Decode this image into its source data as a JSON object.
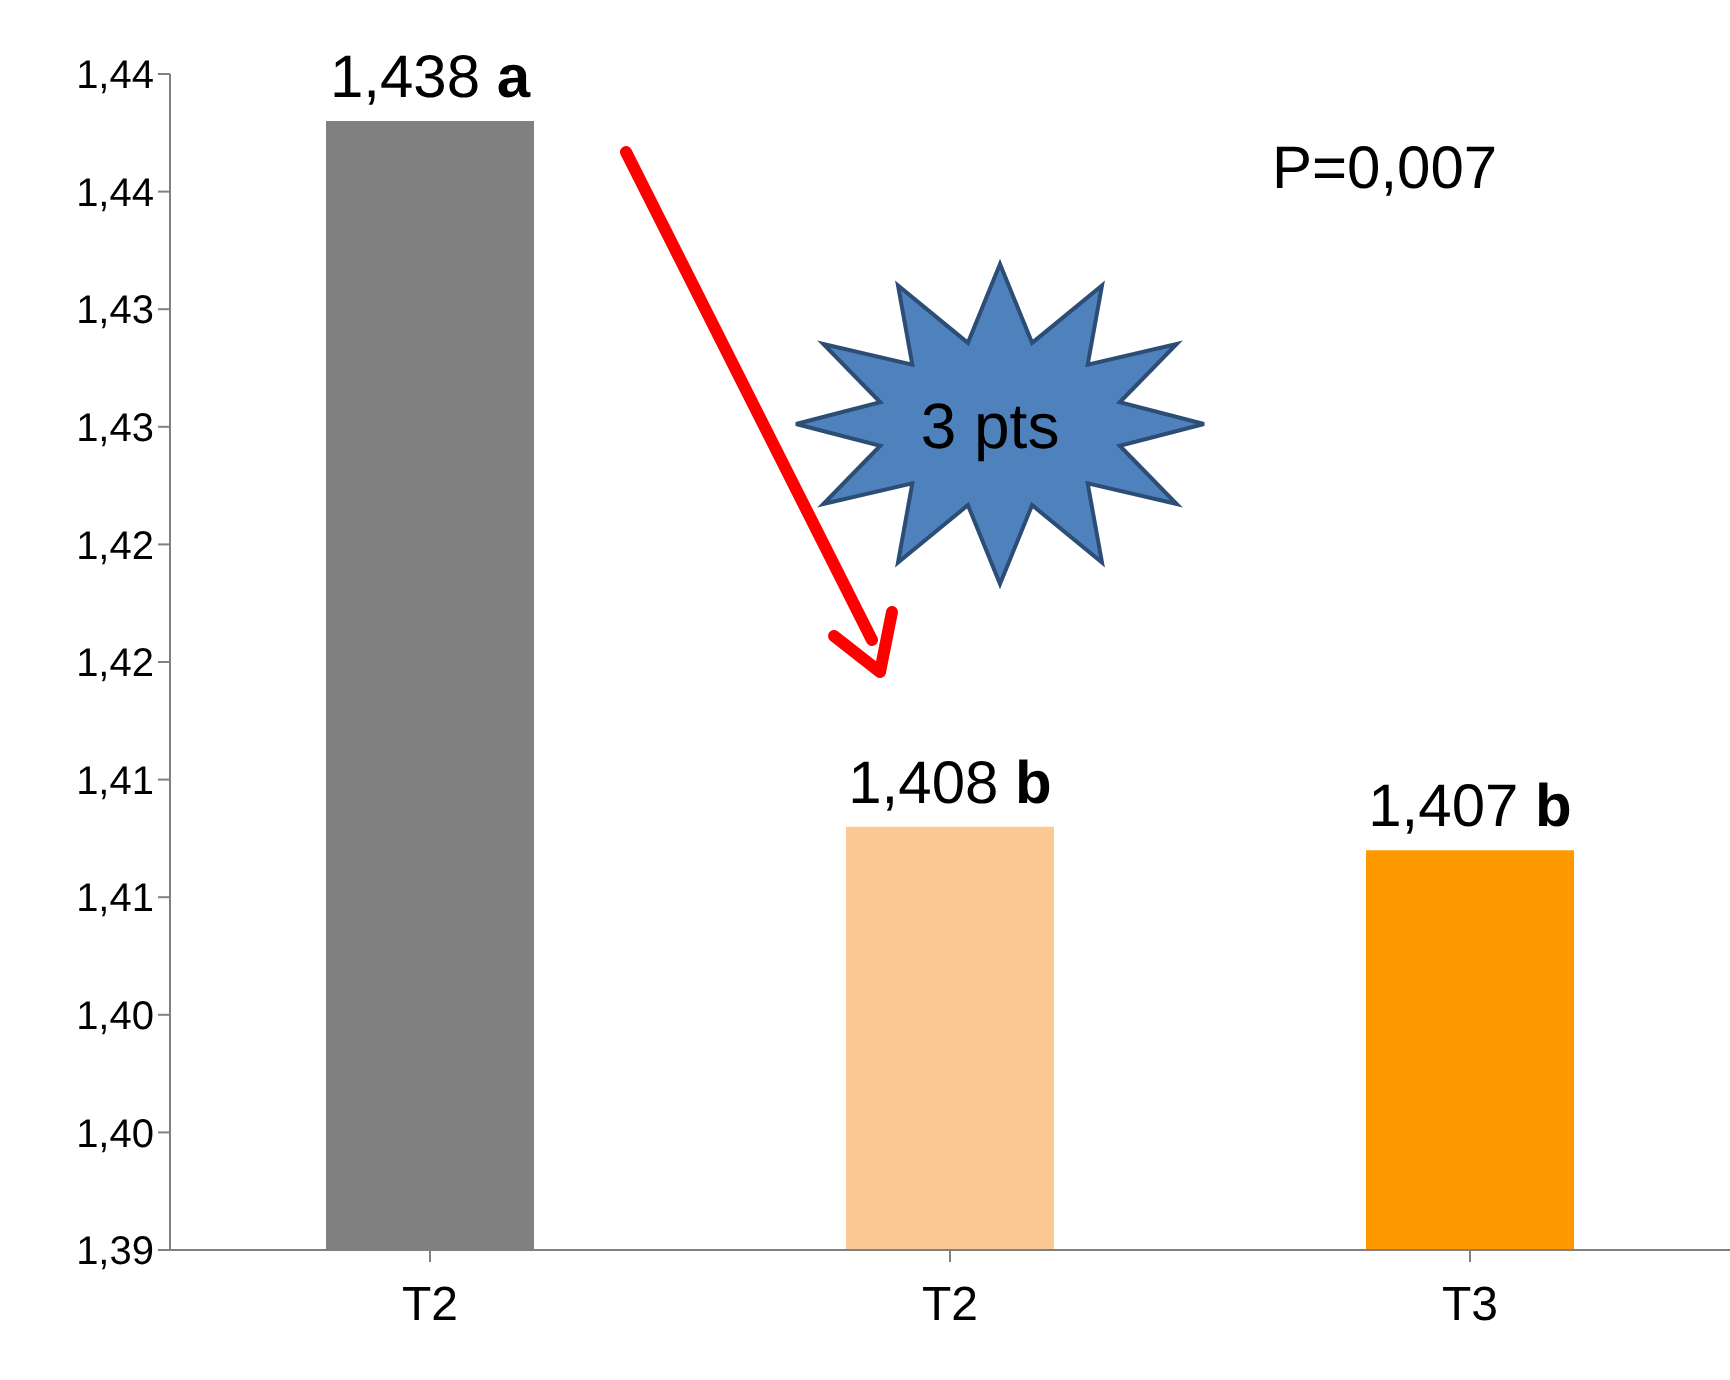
{
  "chart_data": {
    "type": "bar",
    "categories": [
      "T2",
      "T2",
      "T3"
    ],
    "values": [
      1.438,
      1.408,
      1.407
    ],
    "colors": [
      "#808080",
      "#fcc994",
      "#ff9900"
    ],
    "value_labels": [
      "1,438 a",
      "1,408 b",
      "1,407 b"
    ],
    "ylim": [
      1.39,
      1.44
    ],
    "yticks": [
      {
        "value": 1.39,
        "label": "1,39"
      },
      {
        "value": 1.395,
        "label": "1,40"
      },
      {
        "value": 1.4,
        "label": "1,40"
      },
      {
        "value": 1.405,
        "label": "1,41"
      },
      {
        "value": 1.41,
        "label": "1,41"
      },
      {
        "value": 1.415,
        "label": "1,42"
      },
      {
        "value": 1.42,
        "label": "1,42"
      },
      {
        "value": 1.425,
        "label": "1,43"
      },
      {
        "value": 1.43,
        "label": "1,43"
      },
      {
        "value": 1.435,
        "label": "1,44"
      },
      {
        "value": 1.44,
        "label": "1,44"
      }
    ],
    "grid": false,
    "annotations": [
      "P=0,007",
      "3 pts"
    ]
  }
}
